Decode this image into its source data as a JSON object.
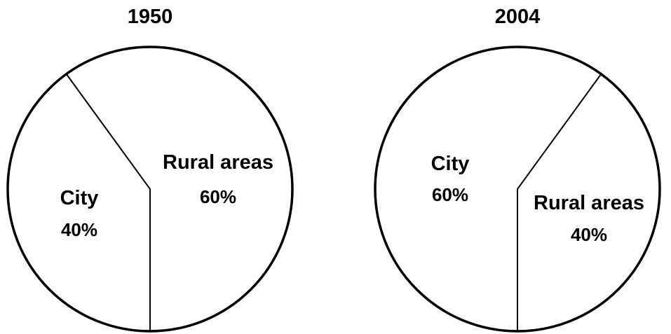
{
  "chart_data": [
    {
      "type": "pie",
      "title": "1950",
      "slices": [
        {
          "label": "City",
          "value": 40,
          "value_label": "40%"
        },
        {
          "label": "Rural areas",
          "value": 60,
          "value_label": "60%"
        }
      ]
    },
    {
      "type": "pie",
      "title": "2004",
      "slices": [
        {
          "label": "City",
          "value": 60,
          "value_label": "60%"
        },
        {
          "label": "Rural areas",
          "value": 40,
          "value_label": "40%"
        }
      ]
    }
  ],
  "colors": {
    "fill": "#ffffff",
    "stroke": "#000000",
    "text": "#000000"
  }
}
